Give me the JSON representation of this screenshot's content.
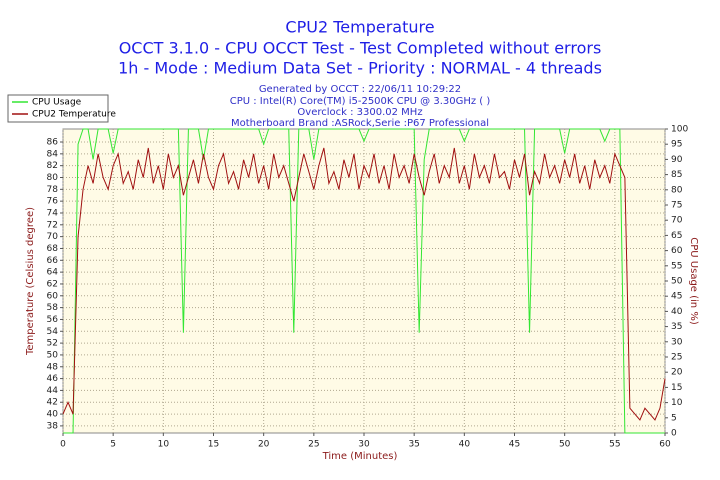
{
  "chart_data": {
    "type": "line",
    "title": "CPU2 Temperature",
    "subtitle": [
      "OCCT 3.1.0 - CPU OCCT Test - Test Completed without errors",
      "1h - Mode : Medium Data Set - Priority : NORMAL - 4 threads"
    ],
    "annotations": [
      "Generated by OCCT : 22/06/11 10:29:22",
      "CPU : Intel(R) Core(TM) i5-2500K CPU @ 3.30GHz (  )",
      "Overclock : 3300.02 MHz",
      "Motherboard Brand :ASRock,Serie :P67 Professional"
    ],
    "xlabel": "Time (Minutes)",
    "ylabel": "Temperature (Celsius degree)",
    "y2label": "CPU Usage (in %)",
    "x": [
      0,
      0.5,
      1,
      1.5,
      2,
      2.5,
      3,
      3.5,
      4,
      4.5,
      5,
      5.5,
      6,
      6.5,
      7,
      7.5,
      8,
      8.5,
      9,
      9.5,
      10,
      10.5,
      11,
      11.5,
      12,
      12.5,
      13,
      13.5,
      14,
      14.5,
      15,
      15.5,
      16,
      16.5,
      17,
      17.5,
      18,
      18.5,
      19,
      19.5,
      20,
      20.5,
      21,
      21.5,
      22,
      22.5,
      23,
      23.5,
      24,
      24.5,
      25,
      25.5,
      26,
      26.5,
      27,
      27.5,
      28,
      28.5,
      29,
      29.5,
      30,
      30.5,
      31,
      31.5,
      32,
      32.5,
      33,
      33.5,
      34,
      34.5,
      35,
      35.5,
      36,
      36.5,
      37,
      37.5,
      38,
      38.5,
      39,
      39.5,
      40,
      40.5,
      41,
      41.5,
      42,
      42.5,
      43,
      43.5,
      44,
      44.5,
      45,
      45.5,
      46,
      46.5,
      47,
      47.5,
      48,
      48.5,
      49,
      49.5,
      50,
      50.5,
      51,
      51.5,
      52,
      52.5,
      53,
      53.5,
      54,
      54.5,
      55,
      55.5,
      56,
      56.5,
      57,
      57.5,
      58,
      58.5,
      59,
      59.5,
      60
    ],
    "series": [
      {
        "name": "CPU Usage",
        "color": "#33e633",
        "axis": "y2",
        "values": [
          0,
          0,
          0,
          95,
          100,
          100,
          90,
          100,
          100,
          100,
          92,
          100,
          100,
          100,
          100,
          100,
          100,
          100,
          100,
          100,
          100,
          100,
          100,
          100,
          33,
          100,
          100,
          100,
          90,
          100,
          100,
          100,
          100,
          100,
          100,
          100,
          100,
          100,
          100,
          100,
          95,
          100,
          100,
          100,
          100,
          100,
          33,
          100,
          100,
          100,
          90,
          100,
          100,
          100,
          100,
          100,
          100,
          100,
          100,
          100,
          96,
          100,
          100,
          100,
          100,
          100,
          100,
          100,
          100,
          100,
          100,
          33,
          90,
          100,
          100,
          100,
          100,
          100,
          100,
          100,
          96,
          100,
          100,
          100,
          100,
          100,
          100,
          100,
          100,
          100,
          100,
          100,
          100,
          33,
          100,
          100,
          100,
          100,
          100,
          100,
          92,
          100,
          100,
          100,
          100,
          100,
          100,
          100,
          96,
          100,
          100,
          100,
          0,
          0,
          0,
          0,
          0,
          0,
          0,
          0,
          0
        ]
      },
      {
        "name": "CPU2 Temperature",
        "color": "#a01010",
        "values": [
          40,
          42,
          40,
          70,
          78,
          82,
          79,
          84,
          80,
          78,
          82,
          84,
          79,
          81,
          78,
          83,
          80,
          85,
          79,
          82,
          78,
          84,
          80,
          82,
          77,
          80,
          83,
          79,
          84,
          80,
          78,
          82,
          84,
          79,
          81,
          78,
          83,
          80,
          84,
          79,
          82,
          78,
          84,
          80,
          82,
          79,
          76,
          80,
          84,
          81,
          78,
          82,
          85,
          79,
          81,
          78,
          83,
          80,
          84,
          78,
          82,
          80,
          84,
          79,
          82,
          78,
          84,
          80,
          82,
          79,
          84,
          80,
          77,
          81,
          84,
          79,
          82,
          80,
          85,
          79,
          82,
          78,
          84,
          80,
          82,
          79,
          84,
          80,
          81,
          78,
          83,
          80,
          84,
          77,
          81,
          79,
          84,
          80,
          82,
          79,
          83,
          80,
          84,
          79,
          82,
          78,
          83,
          80,
          82,
          79,
          84,
          82,
          80,
          41,
          40,
          39,
          41,
          40,
          39,
          41,
          46
        ]
      }
    ],
    "xlim": [
      0,
      60
    ],
    "xticks": [
      0,
      5,
      10,
      15,
      20,
      25,
      30,
      35,
      40,
      45,
      50,
      55,
      60
    ],
    "ylim": [
      36.8,
      88.2
    ],
    "yticks": [
      38,
      40,
      42,
      44,
      46,
      48,
      50,
      52,
      54,
      56,
      58,
      60,
      62,
      64,
      66,
      68,
      70,
      72,
      74,
      76,
      78,
      80,
      82,
      84,
      86
    ],
    "y2lim": [
      0,
      100
    ],
    "y2ticks": [
      0,
      5,
      10,
      15,
      20,
      25,
      30,
      35,
      40,
      45,
      50,
      55,
      60,
      65,
      70,
      75,
      80,
      85,
      90,
      95,
      100
    ],
    "grid": true,
    "legend": "top-left"
  }
}
